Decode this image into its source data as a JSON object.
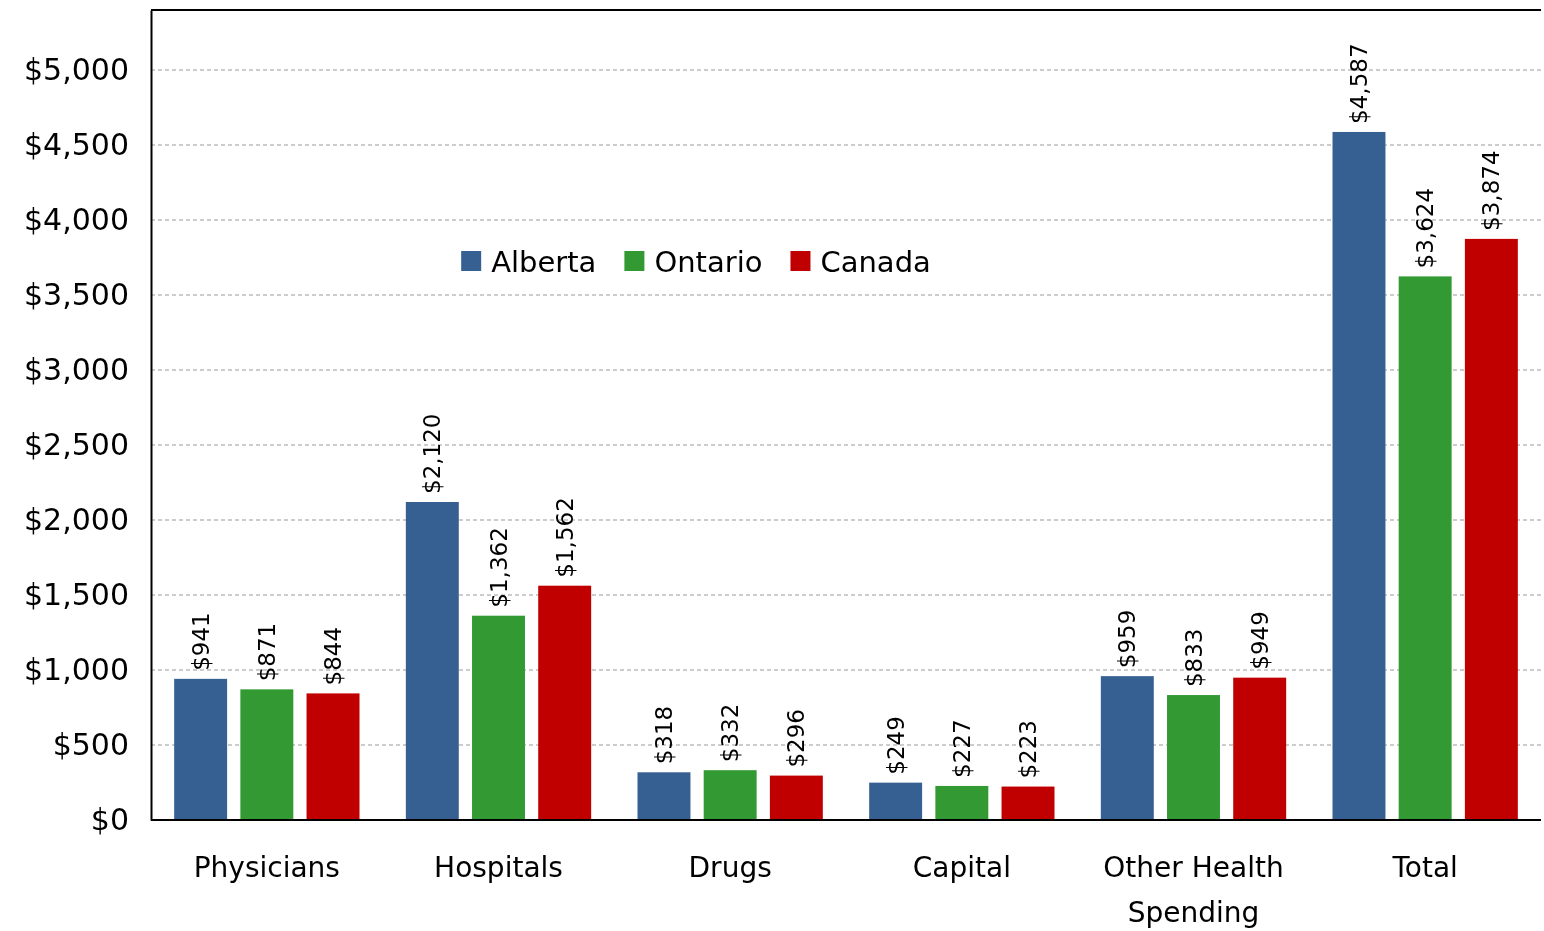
{
  "chart_data": {
    "type": "bar",
    "categories": [
      "Physicians",
      "Hospitals",
      "Drugs",
      "Capital",
      "Other Health Spending",
      "Total"
    ],
    "series": [
      {
        "name": "Alberta",
        "color": "#376092",
        "values": [
          941,
          2120,
          318,
          249,
          959,
          4587
        ],
        "value_labels": [
          "$941",
          "$2,120",
          "$318",
          "$249",
          "$959",
          "$4,587"
        ]
      },
      {
        "name": "Ontario",
        "color": "#339933",
        "values": [
          871,
          1362,
          332,
          227,
          833,
          3624
        ],
        "value_labels": [
          "$871",
          "$1,362",
          "$332",
          "$227",
          "$833",
          "$3,624"
        ]
      },
      {
        "name": "Canada",
        "color": "#c00000",
        "values": [
          844,
          1562,
          296,
          223,
          949,
          3874
        ],
        "value_labels": [
          "$844",
          "$1,562",
          "$296",
          "$223",
          "$949",
          "$3,874"
        ]
      }
    ],
    "ylim": [
      0,
      5400
    ],
    "yticks": [
      {
        "value": 0,
        "label": "$0"
      },
      {
        "value": 500,
        "label": "$500"
      },
      {
        "value": 1000,
        "label": "$1,000"
      },
      {
        "value": 1500,
        "label": "$1,500"
      },
      {
        "value": 2000,
        "label": "$2,000"
      },
      {
        "value": 2500,
        "label": "$2,500"
      },
      {
        "value": 3000,
        "label": "$3,000"
      },
      {
        "value": 3500,
        "label": "$3,500"
      },
      {
        "value": 4000,
        "label": "$4,000"
      },
      {
        "value": 4500,
        "label": "$4,500"
      },
      {
        "value": 5000,
        "label": "$5,000"
      }
    ],
    "grid": "y",
    "legend": "top"
  }
}
